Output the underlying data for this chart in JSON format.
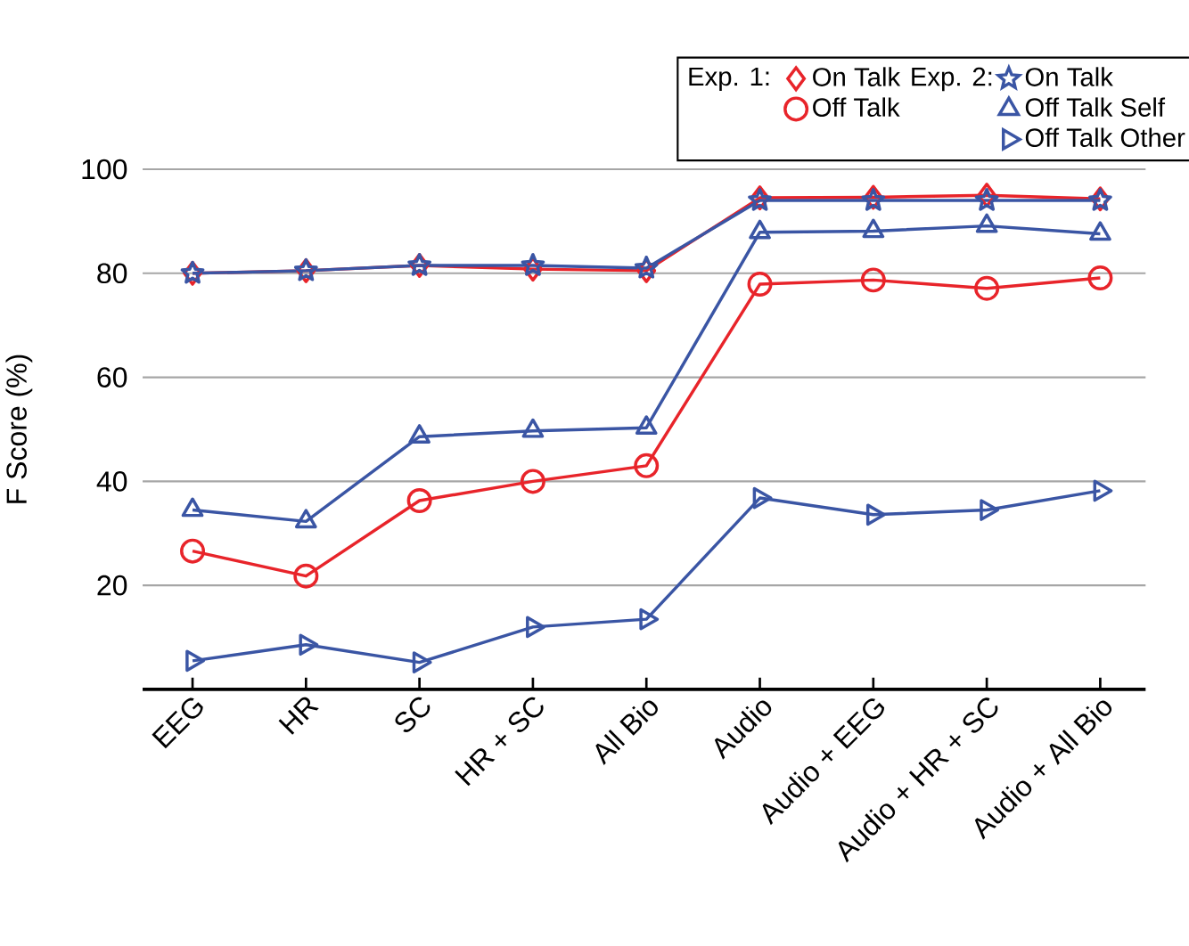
{
  "chart_data": {
    "type": "line",
    "ylabel": "F Score (%)",
    "categories": [
      "EEG",
      "HR",
      "SC",
      "HR + SC",
      "All Bio",
      "Audio",
      "Audio + EEG",
      "Audio + HR + SC",
      "Audio + All Bio"
    ],
    "series": [
      {
        "name": "On Talk",
        "color": "#e8242a",
        "marker": "diamond",
        "values": [
          80,
          80.5,
          81.5,
          80.8,
          80.5,
          94.5,
          94.6,
          95,
          94.3
        ]
      },
      {
        "name": "Off Talk",
        "color": "#e8242a",
        "marker": "circle",
        "values": [
          26.6,
          21.8,
          36.3,
          40.0,
          43.0,
          77.9,
          78.7,
          77.1,
          79.1
        ]
      },
      {
        "name": "On Talk",
        "color": "#3a55a4",
        "marker": "star",
        "values": [
          80,
          80.5,
          81.5,
          81.5,
          81,
          94,
          94,
          94,
          94
        ]
      },
      {
        "name": "Off Talk Self",
        "color": "#3a55a4",
        "marker": "triangle",
        "values": [
          34.5,
          32.3,
          48.6,
          49.7,
          50.3,
          87.9,
          88.1,
          89.1,
          87.6
        ]
      },
      {
        "name": "Off Talk Other",
        "color": "#3a55a4",
        "marker": "triangle-right",
        "values": [
          5.5,
          8.6,
          5.2,
          12.0,
          13.5,
          36.8,
          33.6,
          34.5,
          38.2
        ]
      }
    ],
    "annotations": [
      "Exp. 1:",
      "Exp. 2:"
    ],
    "ylim": [
      0,
      100
    ],
    "yticks": [
      20,
      40,
      60,
      80,
      100
    ],
    "grid": "y",
    "legend": "top right",
    "line_style": "solid"
  }
}
